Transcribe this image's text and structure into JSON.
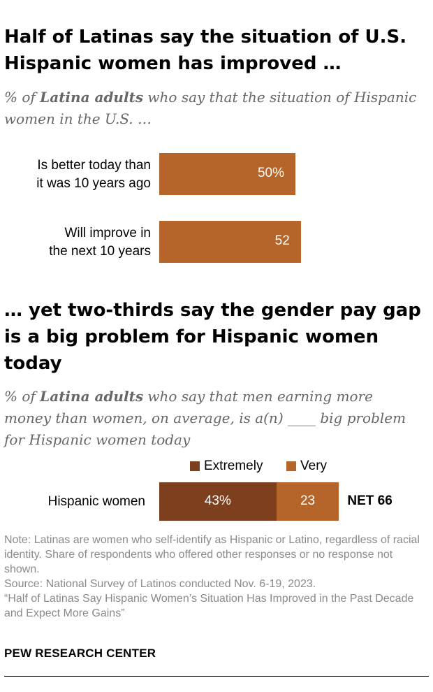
{
  "chart1": {
    "title": "Half of Latinas say the situation of U.S. Hispanic women has improved …",
    "subtitle_pre": "% of ",
    "subtitle_bold": "Latina adults",
    "subtitle_post": " who say that the situation of Hispanic women in the U.S. …",
    "chart_data": {
      "type": "bar",
      "orientation": "horizontal",
      "categories": [
        "Is better today than it was 10 years ago",
        "Will improve in the next 10 years"
      ],
      "category_lines": [
        [
          "Is better today than",
          "it was 10 years ago"
        ],
        [
          "Will improve in",
          "the next 10 years"
        ]
      ],
      "values": [
        50,
        52
      ],
      "data_labels": [
        "50%",
        "52"
      ],
      "color": "#b5642a",
      "xlim": [
        0,
        100
      ]
    }
  },
  "chart2": {
    "title": "… yet two-thirds say the gender pay gap is a big problem for Hispanic women today",
    "subtitle_pre": "% of ",
    "subtitle_bold": "Latina adults",
    "subtitle_post": " who say that men earning more money than women, on average, is a(n) ____ big problem for Hispanic women today",
    "chart_data": {
      "type": "bar",
      "stacked": true,
      "orientation": "horizontal",
      "categories": [
        "Hispanic women"
      ],
      "series": [
        {
          "name": "Extremely",
          "values": [
            43
          ],
          "labels": [
            "43%"
          ],
          "color": "#7e3f1f"
        },
        {
          "name": "Very",
          "values": [
            23
          ],
          "labels": [
            "23"
          ],
          "color": "#b5642a"
        }
      ],
      "net_label": "NET 66",
      "legend_position": "top",
      "xlim": [
        0,
        100
      ]
    }
  },
  "notes": {
    "note": "Note: Latinas are women who self-identify as Hispanic or Latino, regardless of racial identity. Share of respondents who offered other responses or no response not shown.",
    "source": "Source: National Survey of Latinos conducted Nov. 6-19, 2023.",
    "report": "“Half of Latinas Say Hispanic Women’s Situation Has Improved in the Past Decade and Expect More Gains”"
  },
  "brand": "PEW RESEARCH CENTER"
}
